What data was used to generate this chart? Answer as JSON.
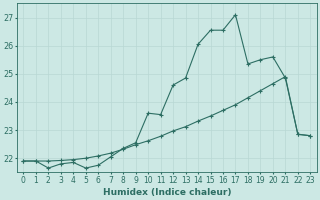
{
  "title": "",
  "xlabel": "Humidex (Indice chaleur)",
  "background_color": "#cce8e4",
  "grid_color": "#b8d8d4",
  "line_color": "#2d6e63",
  "xlim": [
    -0.5,
    23.5
  ],
  "ylim": [
    21.5,
    27.5
  ],
  "yticks": [
    22,
    23,
    24,
    25,
    26,
    27
  ],
  "xticks": [
    0,
    1,
    2,
    3,
    4,
    5,
    6,
    7,
    8,
    9,
    10,
    11,
    12,
    13,
    14,
    15,
    16,
    17,
    18,
    19,
    20,
    21,
    22,
    23
  ],
  "series1_x": [
    0,
    1,
    2,
    3,
    4,
    5,
    6,
    7,
    8,
    9,
    10,
    11,
    12,
    13,
    14,
    15,
    16,
    17,
    18,
    19,
    20,
    21,
    22,
    23
  ],
  "series1_y": [
    21.9,
    21.9,
    21.65,
    21.8,
    21.85,
    21.65,
    21.75,
    22.05,
    22.35,
    22.55,
    23.6,
    23.55,
    24.6,
    24.85,
    26.05,
    26.55,
    26.55,
    27.1,
    25.35,
    25.5,
    25.6,
    24.85,
    22.85,
    22.8
  ],
  "series2_x": [
    0,
    1,
    2,
    3,
    4,
    5,
    6,
    7,
    8,
    9,
    10,
    11,
    12,
    13,
    14,
    15,
    16,
    17,
    18,
    19,
    20,
    21,
    22,
    23
  ],
  "series2_y": [
    21.9,
    21.9,
    21.9,
    21.92,
    21.95,
    22.0,
    22.08,
    22.18,
    22.32,
    22.48,
    22.62,
    22.78,
    22.97,
    23.12,
    23.32,
    23.5,
    23.7,
    23.9,
    24.15,
    24.4,
    24.65,
    24.9,
    22.85,
    22.8
  ],
  "markersize": 2.0,
  "linewidth": 0.8,
  "tick_fontsize": 5.5,
  "xlabel_fontsize": 6.5
}
